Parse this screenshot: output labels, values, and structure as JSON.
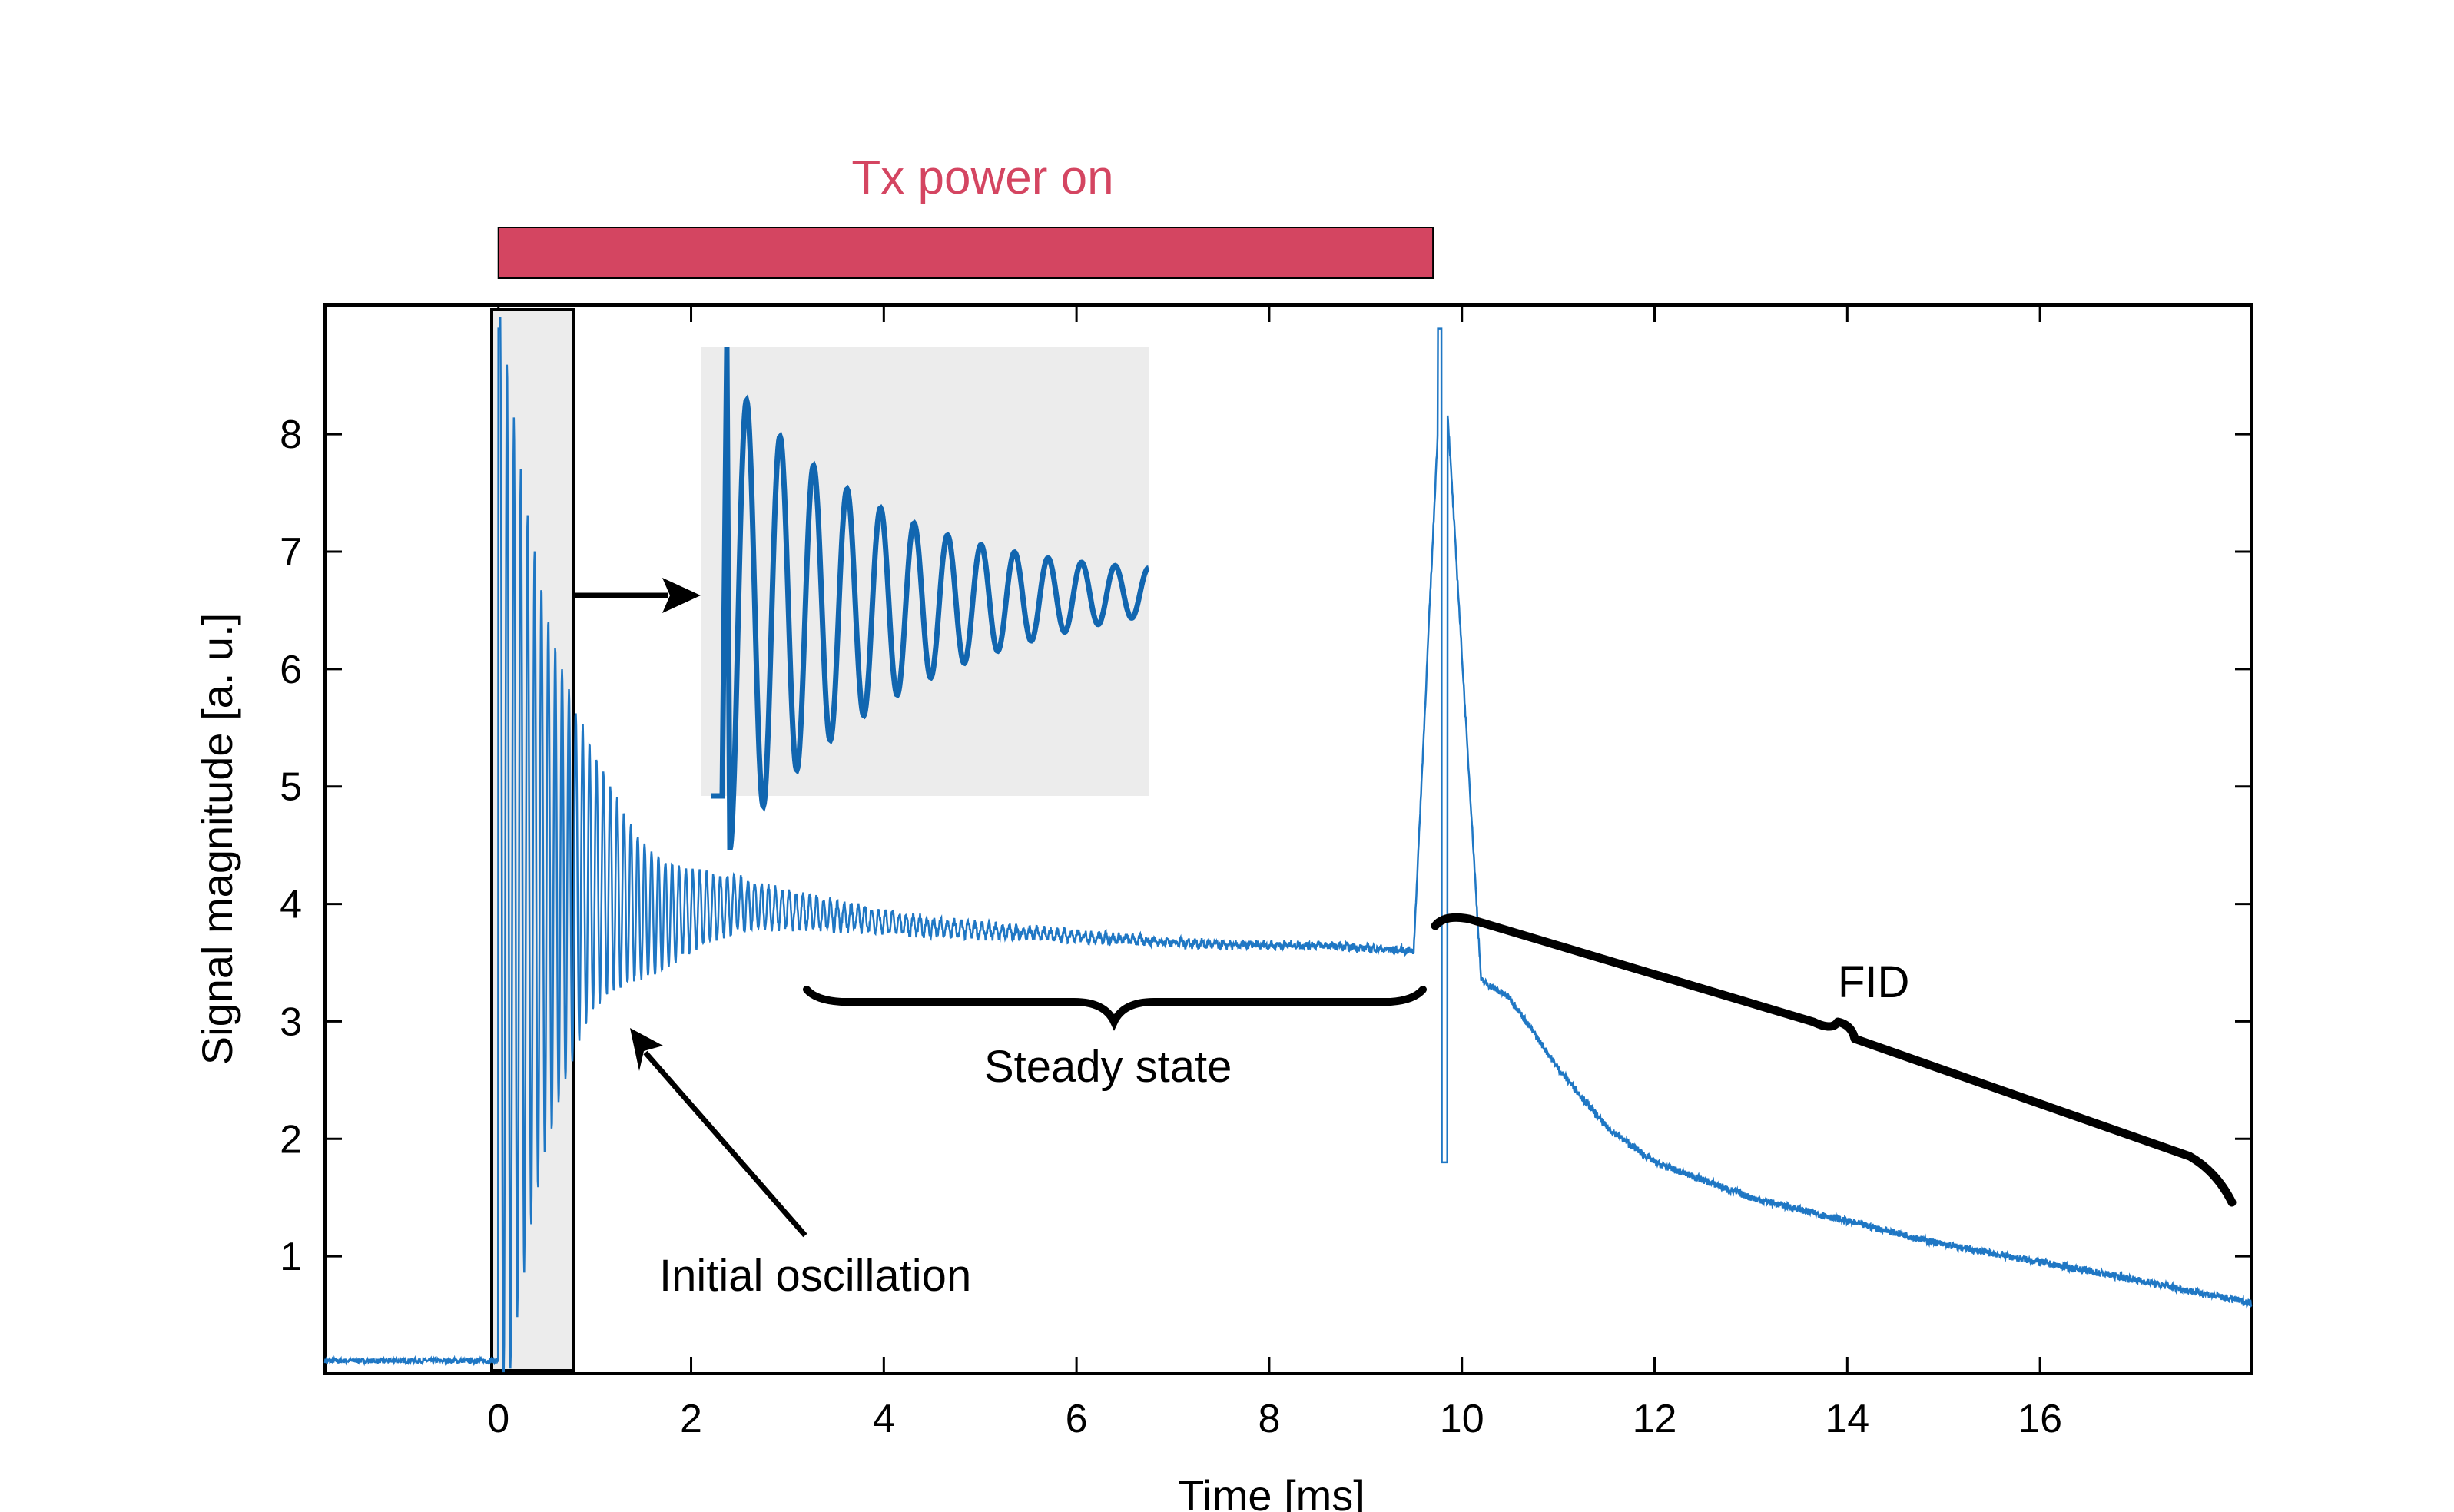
{
  "chart_data": {
    "type": "line",
    "title": "",
    "xlabel": "Time [ms]",
    "ylabel": "Signal magnitude [a. u.]",
    "xlim": [
      -1.8,
      18.2
    ],
    "ylim": [
      0,
      9.1
    ],
    "xticks": [
      0,
      2,
      4,
      6,
      8,
      10,
      12,
      14,
      16
    ],
    "yticks": [
      1,
      2,
      3,
      4,
      5,
      6,
      7,
      8
    ],
    "series": [
      {
        "name": "Signal magnitude",
        "color": "#1f77c4",
        "description": "received signal; baseline ~0.1, oscillation starting at 0 ms, steady state ~3.6–3.9, spike at ~9.8 ms, FID decay from ~3.5 to ~0.6",
        "x": [
          -1.8,
          -0.5,
          -0.05,
          0.0,
          1.0,
          1.6,
          2.5,
          3.5,
          4.5,
          5.5,
          6.5,
          7.5,
          8.5,
          9.5,
          9.8,
          10.2,
          10.5,
          11.0,
          11.5,
          12.0,
          13.0,
          14.0,
          15.0,
          16.0,
          17.0,
          18.2
        ],
        "y": [
          0.1,
          0.11,
          0.15,
          8.9,
          4.2,
          3.9,
          4.0,
          3.9,
          3.8,
          3.75,
          3.7,
          3.65,
          3.65,
          3.6,
          8.9,
          3.35,
          3.2,
          2.6,
          2.1,
          1.8,
          1.5,
          1.3,
          1.1,
          0.95,
          0.8,
          0.6
        ]
      }
    ],
    "annotations": {
      "tx_label": "Tx power on",
      "tx_range_ms": [
        0,
        9.7
      ],
      "tx_color": "#d44561",
      "initial_oscillation": "Initial oscillation",
      "steady_state": "Steady state",
      "fid": "FID"
    }
  }
}
